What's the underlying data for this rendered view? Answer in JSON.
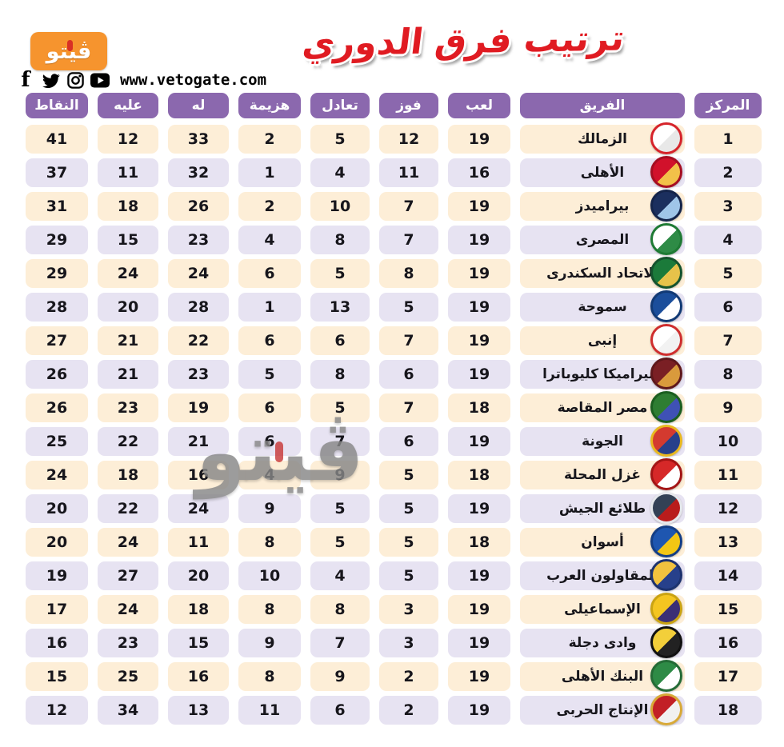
{
  "brand": {
    "logo_text": "ڤيتو",
    "website": "www.vetogate.com",
    "social": [
      {
        "name": "facebook-icon"
      },
      {
        "name": "twitter-icon"
      },
      {
        "name": "instagram-icon"
      },
      {
        "name": "youtube-icon"
      }
    ]
  },
  "title": "ترتيب فرق الدوري",
  "watermark": "ڤيتو",
  "colors": {
    "header_purple": "#8b68ae",
    "row_cream": "#fdeed7",
    "row_lavender": "#e7e3f2",
    "title_red": "#e01b22",
    "brand_orange": "#f6942e"
  },
  "table": {
    "columns": [
      {
        "key": "position",
        "label": "المركز"
      },
      {
        "key": "team",
        "label": "الفريق"
      },
      {
        "key": "played",
        "label": "لعب"
      },
      {
        "key": "wins",
        "label": "فوز"
      },
      {
        "key": "draws",
        "label": "تعادل"
      },
      {
        "key": "losses",
        "label": "هزيمة"
      },
      {
        "key": "goals_for",
        "label": "له"
      },
      {
        "key": "goals_against",
        "label": "عليه"
      },
      {
        "key": "points",
        "label": "النقاط"
      }
    ],
    "rows": [
      {
        "position": 1,
        "team": "الزمالك",
        "played": 19,
        "wins": 12,
        "draws": 5,
        "losses": 2,
        "goals_for": 33,
        "goals_against": 12,
        "points": 41,
        "logo_colors": [
          "#ffffff",
          "#e8e8e8",
          "#d6232a"
        ]
      },
      {
        "position": 2,
        "team": "الأهلى",
        "played": 16,
        "wins": 11,
        "draws": 4,
        "losses": 1,
        "goals_for": 32,
        "goals_against": 11,
        "points": 37,
        "logo_colors": [
          "#d1112b",
          "#f2c149",
          "#a50e22"
        ]
      },
      {
        "position": 3,
        "team": "بيراميدز",
        "played": 19,
        "wins": 7,
        "draws": 10,
        "losses": 2,
        "goals_for": 26,
        "goals_against": 18,
        "points": 31,
        "logo_colors": [
          "#1b2f5e",
          "#9fc5e8",
          "#14244a"
        ]
      },
      {
        "position": 4,
        "team": "المصرى",
        "played": 19,
        "wins": 7,
        "draws": 8,
        "losses": 4,
        "goals_for": 23,
        "goals_against": 15,
        "points": 29,
        "logo_colors": [
          "#ffffff",
          "#2e8b46",
          "#1e7a34"
        ]
      },
      {
        "position": 5,
        "team": "الاتحاد السكندرى",
        "played": 19,
        "wins": 8,
        "draws": 5,
        "losses": 6,
        "goals_for": 24,
        "goals_against": 24,
        "points": 29,
        "logo_colors": [
          "#1b7a3a",
          "#e7c24a",
          "#14532d"
        ]
      },
      {
        "position": 6,
        "team": "سموحة",
        "played": 19,
        "wins": 5,
        "draws": 13,
        "losses": 1,
        "goals_for": 28,
        "goals_against": 20,
        "points": 28,
        "logo_colors": [
          "#1b4e9b",
          "#ffffff",
          "#123a75"
        ]
      },
      {
        "position": 7,
        "team": "إنبى",
        "played": 19,
        "wins": 7,
        "draws": 6,
        "losses": 6,
        "goals_for": 22,
        "goals_against": 21,
        "points": 27,
        "logo_colors": [
          "#ffffff",
          "#f2f2f2",
          "#cf2e2e"
        ]
      },
      {
        "position": 8,
        "team": "سيراميكا كليوباترا",
        "played": 19,
        "wins": 6,
        "draws": 8,
        "losses": 5,
        "goals_for": 23,
        "goals_against": 21,
        "points": 26,
        "logo_colors": [
          "#7a1f24",
          "#d99a3c",
          "#5e171b"
        ]
      },
      {
        "position": 9,
        "team": "مصر المقاصة",
        "played": 18,
        "wins": 7,
        "draws": 5,
        "losses": 6,
        "goals_for": 19,
        "goals_against": 23,
        "points": 26,
        "logo_colors": [
          "#2e7d32",
          "#3f51b5",
          "#1b5e20"
        ]
      },
      {
        "position": 10,
        "team": "الجونة",
        "played": 19,
        "wins": 6,
        "draws": 7,
        "losses": 6,
        "goals_for": 21,
        "goals_against": 22,
        "points": 25,
        "logo_colors": [
          "#d43a2f",
          "#27408b",
          "#e8b820"
        ]
      },
      {
        "position": 11,
        "team": "غزل المحلة",
        "played": 18,
        "wins": 5,
        "draws": 9,
        "losses": 4,
        "goals_for": 16,
        "goals_against": 18,
        "points": 24,
        "logo_colors": [
          "#d62828",
          "#ffffff",
          "#a31515"
        ]
      },
      {
        "position": 12,
        "team": "طلائع الجيش",
        "played": 19,
        "wins": 5,
        "draws": 5,
        "losses": 9,
        "goals_for": 24,
        "goals_against": 22,
        "points": 20,
        "logo_colors": [
          "#334155",
          "#b91c1c",
          "#e5e7eb"
        ]
      },
      {
        "position": 13,
        "team": "أسوان",
        "played": 18,
        "wins": 5,
        "draws": 5,
        "losses": 8,
        "goals_for": 11,
        "goals_against": 24,
        "points": 20,
        "logo_colors": [
          "#1e56b0",
          "#f3c614",
          "#143e85"
        ]
      },
      {
        "position": 14,
        "team": "المقاولون العرب",
        "played": 19,
        "wins": 5,
        "draws": 4,
        "losses": 10,
        "goals_for": 20,
        "goals_against": 27,
        "points": 19,
        "logo_colors": [
          "#f2c23e",
          "#27408b",
          "#1d326e"
        ]
      },
      {
        "position": 15,
        "team": "الإسماعيلى",
        "played": 19,
        "wins": 3,
        "draws": 8,
        "losses": 8,
        "goals_for": 18,
        "goals_against": 24,
        "points": 17,
        "logo_colors": [
          "#f4c520",
          "#3b2f75",
          "#caa312"
        ]
      },
      {
        "position": 16,
        "team": "وادى دجلة",
        "played": 19,
        "wins": 3,
        "draws": 7,
        "losses": 9,
        "goals_for": 15,
        "goals_against": 23,
        "points": 16,
        "logo_colors": [
          "#f3cf3a",
          "#222222",
          "#111111"
        ]
      },
      {
        "position": 17,
        "team": "البنك الأهلى",
        "played": 19,
        "wins": 2,
        "draws": 9,
        "losses": 8,
        "goals_for": 16,
        "goals_against": 25,
        "points": 15,
        "logo_colors": [
          "#2e8b46",
          "#ffffff",
          "#246b36"
        ]
      },
      {
        "position": 18,
        "team": "الإنتاج الحربى",
        "played": 19,
        "wins": 2,
        "draws": 6,
        "losses": 11,
        "goals_for": 13,
        "goals_against": 34,
        "points": 12,
        "logo_colors": [
          "#c22026",
          "#f1f1f1",
          "#d8a937"
        ]
      }
    ]
  }
}
